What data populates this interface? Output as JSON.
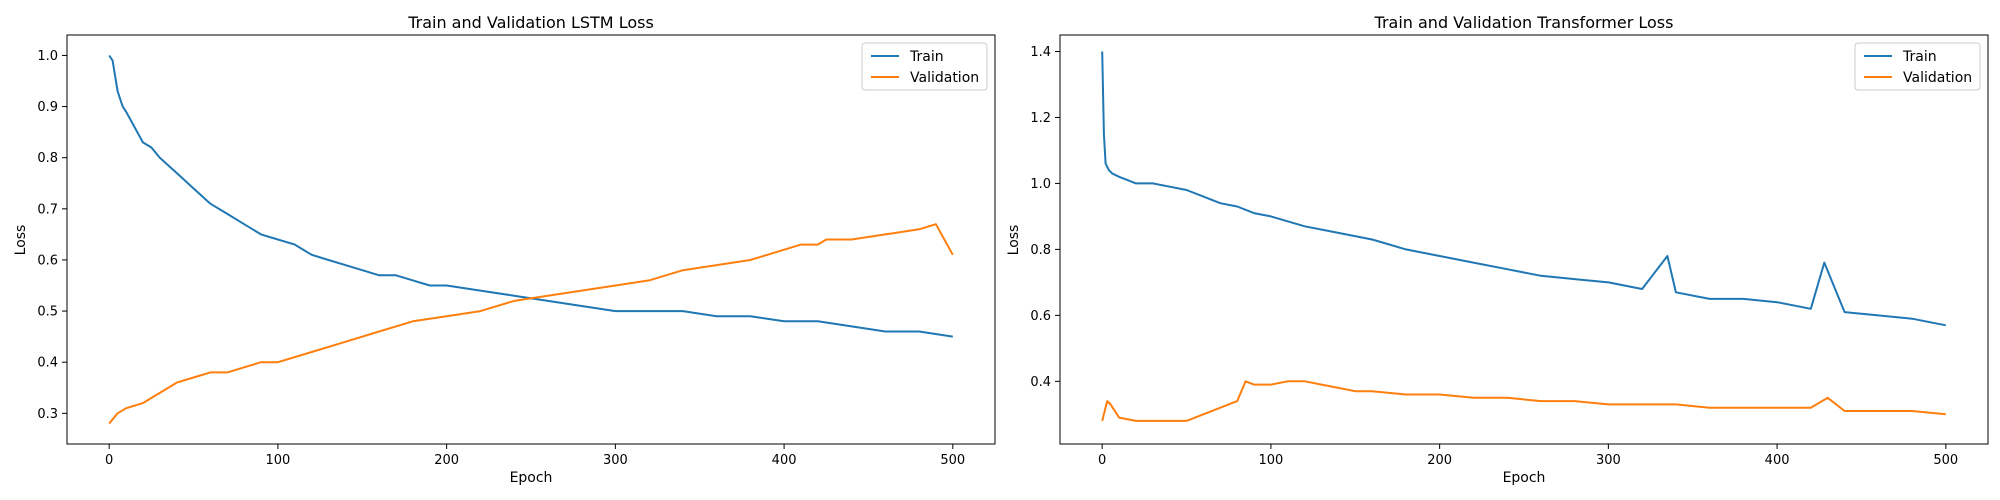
{
  "chart_data": [
    {
      "type": "line",
      "title": "Train and Validation LSTM Loss",
      "xlabel": "Epoch",
      "ylabel": "Loss",
      "xlim": [
        -25,
        525
      ],
      "ylim": [
        0.24,
        1.04
      ],
      "xticks": [
        0,
        100,
        200,
        300,
        400,
        500
      ],
      "yticks": [
        0.3,
        0.4,
        0.5,
        0.6,
        0.7,
        0.8,
        0.9,
        1.0
      ],
      "ytick_labels": [
        "0.3",
        "0.4",
        "0.5",
        "0.6",
        "0.7",
        "0.8",
        "0.9",
        "1.0"
      ],
      "grid": false,
      "legend_position": "top-right",
      "series": [
        {
          "name": "Train",
          "color": "#1f77b4",
          "x": [
            0,
            2,
            5,
            8,
            10,
            15,
            20,
            25,
            30,
            40,
            50,
            60,
            70,
            80,
            90,
            100,
            110,
            120,
            130,
            140,
            150,
            160,
            170,
            180,
            190,
            200,
            220,
            240,
            260,
            280,
            300,
            320,
            340,
            360,
            380,
            400,
            420,
            440,
            460,
            480,
            500
          ],
          "values": [
            1.0,
            0.99,
            0.93,
            0.9,
            0.89,
            0.86,
            0.83,
            0.82,
            0.8,
            0.77,
            0.74,
            0.71,
            0.69,
            0.67,
            0.65,
            0.64,
            0.63,
            0.61,
            0.6,
            0.59,
            0.58,
            0.57,
            0.57,
            0.56,
            0.55,
            0.55,
            0.54,
            0.53,
            0.52,
            0.51,
            0.5,
            0.5,
            0.5,
            0.49,
            0.49,
            0.48,
            0.48,
            0.47,
            0.46,
            0.46,
            0.45
          ]
        },
        {
          "name": "Validation",
          "color": "#ff7f0e",
          "x": [
            0,
            5,
            10,
            20,
            30,
            40,
            50,
            60,
            70,
            80,
            90,
            100,
            120,
            140,
            160,
            180,
            200,
            220,
            240,
            260,
            280,
            300,
            320,
            340,
            360,
            380,
            400,
            410,
            420,
            425,
            440,
            460,
            480,
            490,
            500
          ],
          "values": [
            0.28,
            0.3,
            0.31,
            0.32,
            0.34,
            0.36,
            0.37,
            0.38,
            0.38,
            0.39,
            0.4,
            0.4,
            0.42,
            0.44,
            0.46,
            0.48,
            0.49,
            0.5,
            0.52,
            0.53,
            0.54,
            0.55,
            0.56,
            0.58,
            0.59,
            0.6,
            0.62,
            0.63,
            0.63,
            0.64,
            0.64,
            0.65,
            0.66,
            0.67,
            0.61
          ]
        }
      ]
    },
    {
      "type": "line",
      "title": "Train and Validation Transformer Loss",
      "xlabel": "Epoch",
      "ylabel": "Loss",
      "xlim": [
        -25,
        525
      ],
      "ylim": [
        0.21,
        1.45
      ],
      "xticks": [
        0,
        100,
        200,
        300,
        400,
        500
      ],
      "yticks": [
        0.4,
        0.6,
        0.8,
        1.0,
        1.2,
        1.4
      ],
      "ytick_labels": [
        "0.4",
        "0.6",
        "0.8",
        "1.0",
        "1.2",
        "1.4"
      ],
      "grid": false,
      "legend_position": "top-right",
      "series": [
        {
          "name": "Train",
          "color": "#1f77b4",
          "x": [
            0,
            1,
            2,
            4,
            6,
            10,
            15,
            20,
            30,
            40,
            50,
            60,
            70,
            80,
            90,
            100,
            120,
            140,
            160,
            180,
            200,
            220,
            240,
            260,
            280,
            300,
            320,
            335,
            340,
            360,
            380,
            400,
            420,
            428,
            440,
            460,
            480,
            500
          ],
          "values": [
            1.4,
            1.15,
            1.06,
            1.04,
            1.03,
            1.02,
            1.01,
            1.0,
            1.0,
            0.99,
            0.98,
            0.96,
            0.94,
            0.93,
            0.91,
            0.9,
            0.87,
            0.85,
            0.83,
            0.8,
            0.78,
            0.76,
            0.74,
            0.72,
            0.71,
            0.7,
            0.68,
            0.78,
            0.67,
            0.65,
            0.65,
            0.64,
            0.62,
            0.76,
            0.61,
            0.6,
            0.59,
            0.57
          ]
        },
        {
          "name": "Validation",
          "color": "#ff7f0e",
          "x": [
            0,
            3,
            5,
            10,
            20,
            30,
            40,
            50,
            60,
            70,
            80,
            85,
            90,
            100,
            110,
            120,
            130,
            140,
            150,
            160,
            180,
            200,
            220,
            240,
            260,
            280,
            300,
            320,
            340,
            360,
            380,
            400,
            420,
            430,
            440,
            460,
            480,
            500
          ],
          "values": [
            0.28,
            0.34,
            0.33,
            0.29,
            0.28,
            0.28,
            0.28,
            0.28,
            0.3,
            0.32,
            0.34,
            0.4,
            0.39,
            0.39,
            0.4,
            0.4,
            0.39,
            0.38,
            0.37,
            0.37,
            0.36,
            0.36,
            0.35,
            0.35,
            0.34,
            0.34,
            0.33,
            0.33,
            0.33,
            0.32,
            0.32,
            0.32,
            0.32,
            0.35,
            0.31,
            0.31,
            0.31,
            0.3
          ]
        }
      ]
    }
  ]
}
